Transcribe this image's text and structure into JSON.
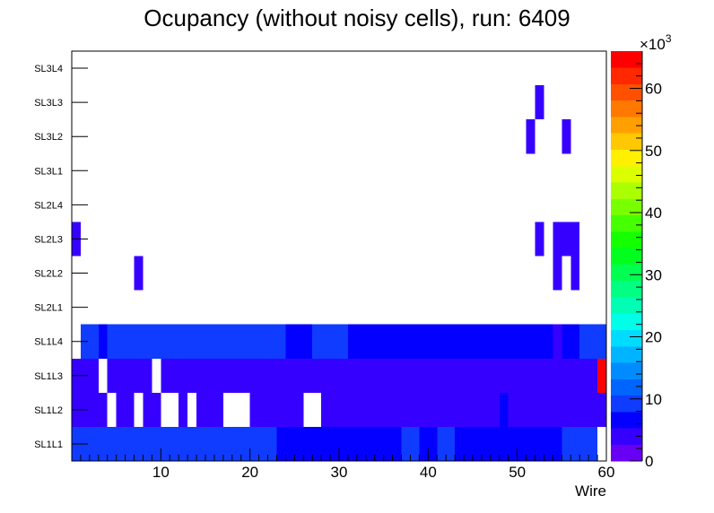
{
  "chart_data": {
    "type": "heatmap",
    "title": "Ocupancy (without noisy cells), run: 6409",
    "xlabel": "Wire",
    "ylabel": "",
    "x_range": [
      0,
      60
    ],
    "x_ticks": [
      10,
      20,
      30,
      40,
      50,
      60
    ],
    "layers": [
      "SL1L1",
      "SL1L2",
      "SL1L3",
      "SL1L4",
      "SL2L1",
      "SL2L2",
      "SL2L3",
      "SL2L4",
      "SL3L1",
      "SL3L2",
      "SL3L3",
      "SL3L4"
    ],
    "z_range": [
      0,
      66000
    ],
    "z_ticks": [
      0,
      10,
      20,
      30,
      40,
      50,
      60
    ],
    "z_exponent_label": "×10",
    "z_exponent_power": "3",
    "palette": [
      "#6800f4",
      "#3600ff",
      "#0400ff",
      "#0f3cff",
      "#0064ff",
      "#008cff",
      "#00b4ff",
      "#00dcff",
      "#00ffe6",
      "#00ffb4",
      "#00ff82",
      "#00ff50",
      "#00ff1e",
      "#14ff00",
      "#46ff00",
      "#78ff00",
      "#aaff00",
      "#dcff00",
      "#fff000",
      "#ffc800",
      "#ffa000",
      "#ff7800",
      "#ff5000",
      "#ff2800",
      "#ff0000"
    ],
    "runs": [
      {
        "layer": 0,
        "x0": 0,
        "x1": 23,
        "value": 9000
      },
      {
        "layer": 0,
        "x0": 23,
        "x1": 37,
        "value": 7000
      },
      {
        "layer": 0,
        "x0": 37,
        "x1": 39,
        "value": 9000
      },
      {
        "layer": 0,
        "x0": 39,
        "x1": 41,
        "value": 7000
      },
      {
        "layer": 0,
        "x0": 41,
        "x1": 43,
        "value": 9000
      },
      {
        "layer": 0,
        "x0": 43,
        "x1": 55,
        "value": 7000
      },
      {
        "layer": 0,
        "x0": 55,
        "x1": 59,
        "value": 9000
      },
      {
        "layer": 1,
        "x0": 0,
        "x1": 4,
        "value": 4000
      },
      {
        "layer": 1,
        "x0": 5,
        "x1": 7,
        "value": 4000
      },
      {
        "layer": 1,
        "x0": 8,
        "x1": 10,
        "value": 4000
      },
      {
        "layer": 1,
        "x0": 12,
        "x1": 13,
        "value": 4000
      },
      {
        "layer": 1,
        "x0": 14,
        "x1": 17,
        "value": 4000
      },
      {
        "layer": 1,
        "x0": 20,
        "x1": 26,
        "value": 4000
      },
      {
        "layer": 1,
        "x0": 28,
        "x1": 48,
        "value": 4000
      },
      {
        "layer": 1,
        "x0": 48,
        "x1": 49,
        "value": 6000
      },
      {
        "layer": 1,
        "x0": 49,
        "x1": 60,
        "value": 4000
      },
      {
        "layer": 2,
        "x0": 0,
        "x1": 3,
        "value": 4000
      },
      {
        "layer": 2,
        "x0": 4,
        "x1": 9,
        "value": 4000
      },
      {
        "layer": 2,
        "x0": 10,
        "x1": 59,
        "value": 4000
      },
      {
        "layer": 2,
        "x0": 59,
        "x1": 60,
        "value": 66000
      },
      {
        "layer": 3,
        "x0": 1,
        "x1": 3,
        "value": 9000
      },
      {
        "layer": 3,
        "x0": 3,
        "x1": 4,
        "value": 6000
      },
      {
        "layer": 3,
        "x0": 4,
        "x1": 24,
        "value": 9000
      },
      {
        "layer": 3,
        "x0": 24,
        "x1": 27,
        "value": 6000
      },
      {
        "layer": 3,
        "x0": 27,
        "x1": 31,
        "value": 9000
      },
      {
        "layer": 3,
        "x0": 31,
        "x1": 54,
        "value": 6000
      },
      {
        "layer": 3,
        "x0": 54,
        "x1": 55,
        "value": 4000
      },
      {
        "layer": 3,
        "x0": 55,
        "x1": 57,
        "value": 6000
      },
      {
        "layer": 3,
        "x0": 57,
        "x1": 60,
        "value": 9000
      },
      {
        "layer": 5,
        "x0": 7,
        "x1": 8,
        "value": 4000
      },
      {
        "layer": 5,
        "x0": 54,
        "x1": 55,
        "value": 4000
      },
      {
        "layer": 5,
        "x0": 56,
        "x1": 57,
        "value": 4000
      },
      {
        "layer": 6,
        "x0": 0,
        "x1": 1,
        "value": 4000
      },
      {
        "layer": 6,
        "x0": 52,
        "x1": 53,
        "value": 4000
      },
      {
        "layer": 6,
        "x0": 54,
        "x1": 57,
        "value": 4000
      },
      {
        "layer": 9,
        "x0": 51,
        "x1": 52,
        "value": 4000
      },
      {
        "layer": 9,
        "x0": 55,
        "x1": 56,
        "value": 4000
      },
      {
        "layer": 10,
        "x0": 52,
        "x1": 53,
        "value": 4000
      }
    ]
  }
}
